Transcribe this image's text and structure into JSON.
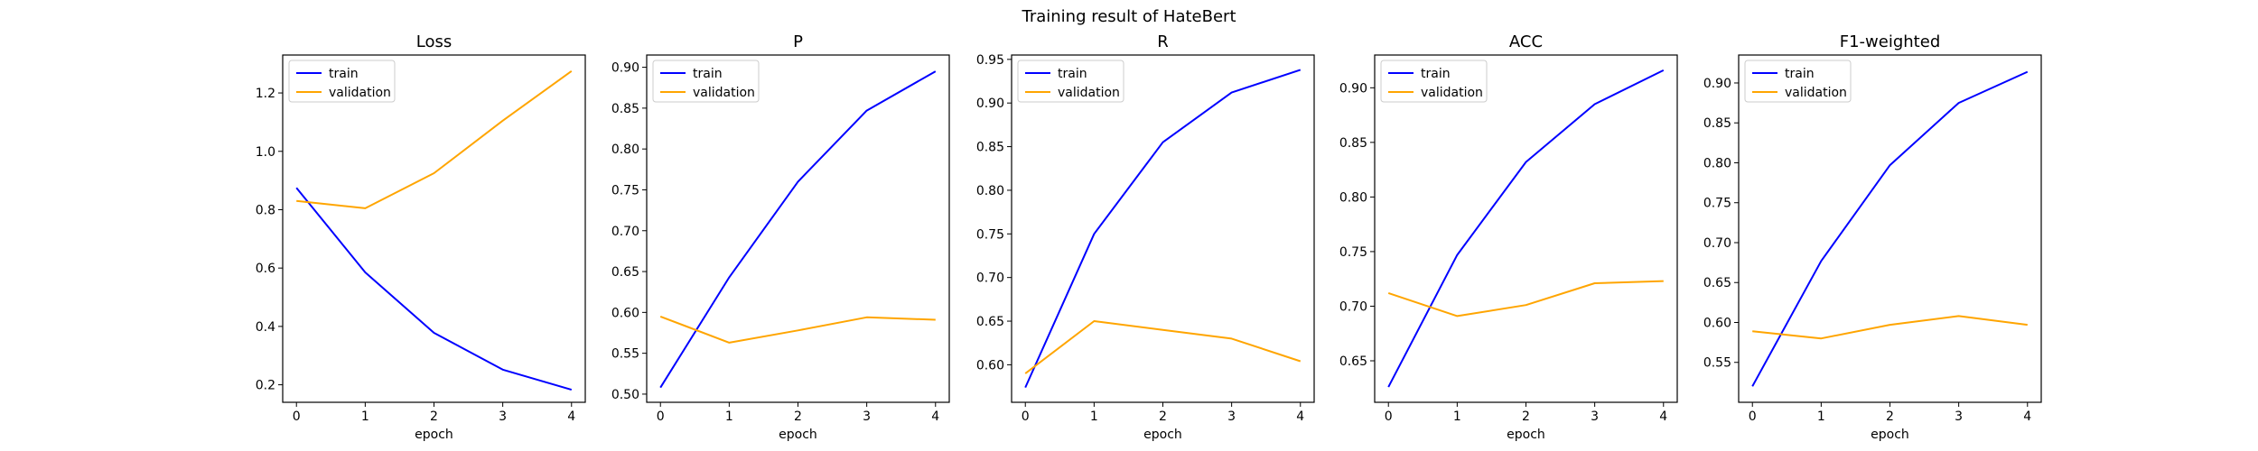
{
  "figure": {
    "title": "Training result of HateBert"
  },
  "legend": {
    "train": "train",
    "validation": "validation"
  },
  "colors": {
    "train": "#0000ff",
    "validation": "#ffa500"
  },
  "chart_data": [
    {
      "type": "line",
      "title": "Loss",
      "xlabel": "epoch",
      "ylabel": "",
      "x": [
        0,
        1,
        2,
        3,
        4
      ],
      "xticks": [
        "0",
        "1",
        "2",
        "3",
        "4"
      ],
      "yticks": [
        "0.2",
        "0.4",
        "0.6",
        "0.8",
        "1.0",
        "1.2"
      ],
      "ylim": [
        0.14,
        1.33
      ],
      "legend_position": "upper-left",
      "series": [
        {
          "name": "train",
          "values": [
            0.875,
            0.585,
            0.378,
            0.252,
            0.183
          ]
        },
        {
          "name": "validation",
          "values": [
            0.83,
            0.805,
            0.925,
            1.105,
            1.275
          ]
        }
      ]
    },
    {
      "type": "line",
      "title": "P",
      "xlabel": "epoch",
      "ylabel": "",
      "x": [
        0,
        1,
        2,
        3,
        4
      ],
      "xticks": [
        "0",
        "1",
        "2",
        "3",
        "4"
      ],
      "yticks": [
        "0.50",
        "0.55",
        "0.60",
        "0.65",
        "0.70",
        "0.75",
        "0.80",
        "0.85",
        "0.90"
      ],
      "ylim": [
        0.49,
        0.915
      ],
      "legend_position": "upper-left",
      "series": [
        {
          "name": "train",
          "values": [
            0.508,
            0.643,
            0.76,
            0.847,
            0.895
          ]
        },
        {
          "name": "validation",
          "values": [
            0.595,
            0.563,
            0.578,
            0.594,
            0.591
          ]
        }
      ]
    },
    {
      "type": "line",
      "title": "R",
      "xlabel": "epoch",
      "ylabel": "",
      "x": [
        0,
        1,
        2,
        3,
        4
      ],
      "xticks": [
        "0",
        "1",
        "2",
        "3",
        "4"
      ],
      "yticks": [
        "0.60",
        "0.65",
        "0.70",
        "0.75",
        "0.80",
        "0.85",
        "0.90",
        "0.95"
      ],
      "ylim": [
        0.557,
        0.955
      ],
      "legend_position": "upper-left",
      "series": [
        {
          "name": "train",
          "values": [
            0.574,
            0.75,
            0.855,
            0.912,
            0.938
          ]
        },
        {
          "name": "validation",
          "values": [
            0.59,
            0.65,
            0.64,
            0.63,
            0.604
          ]
        }
      ]
    },
    {
      "type": "line",
      "title": "ACC",
      "xlabel": "epoch",
      "ylabel": "",
      "x": [
        0,
        1,
        2,
        3,
        4
      ],
      "xticks": [
        "0",
        "1",
        "2",
        "3",
        "4"
      ],
      "yticks": [
        "0.65",
        "0.70",
        "0.75",
        "0.80",
        "0.85",
        "0.90"
      ],
      "ylim": [
        0.612,
        0.93
      ],
      "legend_position": "upper-left",
      "series": [
        {
          "name": "train",
          "values": [
            0.626,
            0.747,
            0.832,
            0.885,
            0.916
          ]
        },
        {
          "name": "validation",
          "values": [
            0.712,
            0.691,
            0.701,
            0.721,
            0.723
          ]
        }
      ]
    },
    {
      "type": "line",
      "title": "F1-weighted",
      "xlabel": "epoch",
      "ylabel": "",
      "x": [
        0,
        1,
        2,
        3,
        4
      ],
      "xticks": [
        "0",
        "1",
        "2",
        "3",
        "4"
      ],
      "yticks": [
        "0.55",
        "0.60",
        "0.65",
        "0.70",
        "0.75",
        "0.80",
        "0.85",
        "0.90"
      ],
      "ylim": [
        0.5,
        0.935
      ],
      "legend_position": "upper-left",
      "series": [
        {
          "name": "train",
          "values": [
            0.52,
            0.677,
            0.797,
            0.875,
            0.914
          ]
        },
        {
          "name": "validation",
          "values": [
            0.589,
            0.58,
            0.597,
            0.608,
            0.597
          ]
        }
      ]
    }
  ]
}
